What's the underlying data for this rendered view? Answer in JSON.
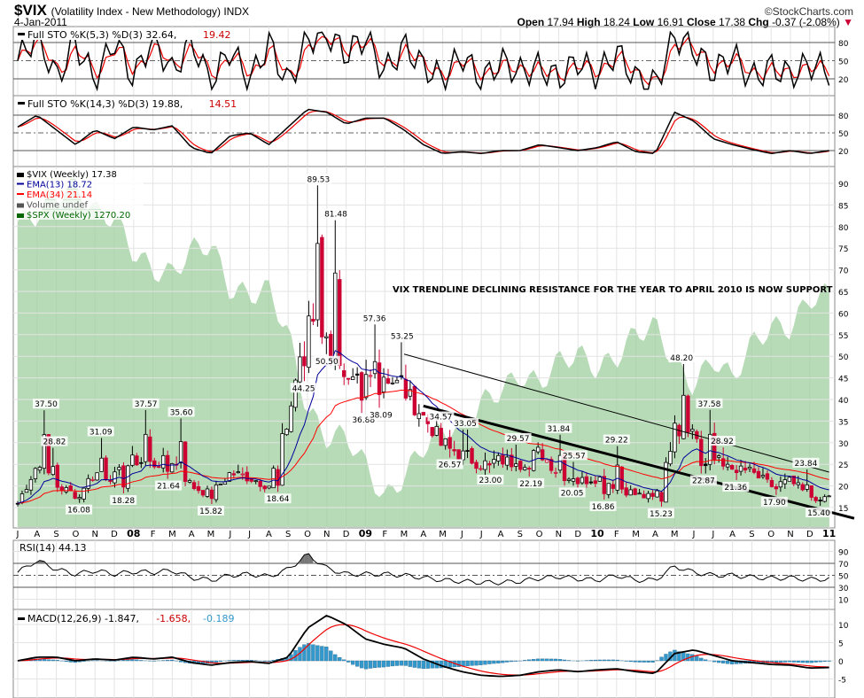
{
  "header": {
    "symbol": "$VIX",
    "description": "(Volatility Index - New Methodology)  INDX",
    "date": "4-Jan-2011",
    "brand": "©StockCharts.com",
    "open_label": "Open",
    "open": "17.94",
    "high_label": "High",
    "high": "18.24",
    "low_label": "Low",
    "low": "16.91",
    "close_label": "Close",
    "close": "17.38",
    "chg_label": "Chg",
    "chg": "-0.37 (-2.08%)",
    "chg_icon": "down-triangle-icon"
  },
  "colors": {
    "candle_up": "#000000",
    "candle_down": "#cc0033",
    "ema13": "#000099",
    "ema34": "#ff0000",
    "spx": "#9fcf9f",
    "rsi": "#000000",
    "macd_hist": "#3399cc",
    "grid": "#e3e3e3"
  },
  "chart_data": [
    {
      "type": "line",
      "panel": "sto1",
      "legend": [
        "Full STO %K(5,3) %D(3) 32.64, ",
        "19.42"
      ],
      "yticks": [
        20,
        50,
        80
      ],
      "ylim": [
        0,
        100
      ],
      "k_values": [
        50,
        95,
        20,
        80,
        15,
        85,
        20,
        90,
        30,
        85,
        10,
        70,
        15,
        80,
        10,
        85,
        95,
        60,
        90,
        30,
        75,
        40,
        20,
        60,
        15,
        50,
        30,
        40,
        20,
        50,
        25,
        65,
        20,
        10,
        90,
        70,
        30,
        60,
        20,
        40,
        25,
        45,
        33
      ]
    },
    {
      "type": "line",
      "panel": "sto2",
      "legend": [
        "Full STO %K(14,3) %D(3) 19.88, ",
        "14.51"
      ],
      "yticks": [
        20,
        50,
        80
      ],
      "ylim": [
        0,
        100
      ],
      "k_values": [
        60,
        80,
        55,
        30,
        55,
        40,
        60,
        55,
        62,
        25,
        15,
        45,
        50,
        30,
        60,
        90,
        85,
        65,
        75,
        75,
        55,
        30,
        15,
        18,
        15,
        20,
        20,
        30,
        25,
        20,
        25,
        35,
        18,
        15,
        85,
        70,
        40,
        30,
        22,
        15,
        20,
        15,
        20
      ]
    },
    {
      "type": "candlestick",
      "panel": "price",
      "legend": [
        "$VIX (Weekly) 17.38",
        "EMA(13) 18.72",
        "EMA(34) 21.14",
        "Volume undef",
        "$SPX (Weekly) 1270.20"
      ],
      "yticks": [
        15,
        20,
        25,
        30,
        35,
        40,
        45,
        50,
        55,
        60,
        65,
        70,
        75,
        80,
        85,
        90
      ],
      "ylim": [
        15,
        90
      ],
      "x_start": "2007-07",
      "x_end": "2011-01",
      "monthly_close": [
        16,
        25,
        20,
        18,
        23,
        22,
        26,
        25,
        26,
        20,
        18,
        23,
        22,
        20,
        35,
        60,
        55,
        42,
        45,
        46,
        42,
        36,
        30,
        27,
        25,
        26,
        25,
        28,
        23,
        21,
        22,
        20,
        18,
        17,
        33,
        34,
        26,
        25,
        23,
        20,
        21,
        17.5,
        17.38
      ],
      "spx_monthly": [
        1455,
        1474,
        1527,
        1549,
        1481,
        1468,
        1378,
        1330,
        1322,
        1385,
        1400,
        1280,
        1267,
        1282,
        1166,
        968,
        896,
        903,
        826,
        735,
        797,
        873,
        919,
        919,
        987,
        1020,
        1057,
        1036,
        1095,
        1115,
        1074,
        1104,
        1169,
        1187,
        1089,
        1031,
        1102,
        1049,
        1141,
        1183,
        1180,
        1258,
        1270
      ],
      "annotations": [
        {
          "date": "2007-08-15",
          "value": 37.5,
          "label": "37.50",
          "kind": "high"
        },
        {
          "date": "2007-08-28",
          "value": 28.82,
          "label": "28.82",
          "kind": "high"
        },
        {
          "date": "2007-10-06",
          "value": 16.08,
          "label": "16.08",
          "kind": "low"
        },
        {
          "date": "2007-11-10",
          "value": 31.09,
          "label": "31.09",
          "kind": "high"
        },
        {
          "date": "2007-12-15",
          "value": 18.28,
          "label": "18.28",
          "kind": "low"
        },
        {
          "date": "2008-01-20",
          "value": 37.57,
          "label": "37.57",
          "kind": "high"
        },
        {
          "date": "2008-02-25",
          "value": 21.64,
          "label": "21.64",
          "kind": "low"
        },
        {
          "date": "2008-03-15",
          "value": 35.6,
          "label": "35.60",
          "kind": "high"
        },
        {
          "date": "2008-05-01",
          "value": 15.82,
          "label": "15.82",
          "kind": "low"
        },
        {
          "date": "2008-08-15",
          "value": 18.64,
          "label": "18.64",
          "kind": "low"
        },
        {
          "date": "2008-09-25",
          "value": 44.25,
          "label": "44.25",
          "kind": "low"
        },
        {
          "date": "2008-10-18",
          "value": 89.53,
          "label": "89.53",
          "kind": "high"
        },
        {
          "date": "2008-11-01",
          "value": 50.5,
          "label": "50.50",
          "kind": "low"
        },
        {
          "date": "2008-11-15",
          "value": 81.48,
          "label": "81.48",
          "kind": "high"
        },
        {
          "date": "2008-12-28",
          "value": 36.88,
          "label": "36.88",
          "kind": "low"
        },
        {
          "date": "2009-01-15",
          "value": 57.36,
          "label": "57.36",
          "kind": "high"
        },
        {
          "date": "2009-01-25",
          "value": 38.09,
          "label": "38.09",
          "kind": "low"
        },
        {
          "date": "2009-02-28",
          "value": 53.25,
          "label": "53.25",
          "kind": "high"
        },
        {
          "date": "2009-04-28",
          "value": 34.57,
          "label": "34.57",
          "kind": "high"
        },
        {
          "date": "2009-05-12",
          "value": 26.57,
          "label": "26.57",
          "kind": "low"
        },
        {
          "date": "2009-06-06",
          "value": 33.05,
          "label": "33.05",
          "kind": "high"
        },
        {
          "date": "2009-07-15",
          "value": 23.0,
          "label": "23.00",
          "kind": "low"
        },
        {
          "date": "2009-08-28",
          "value": 29.57,
          "label": "29.57",
          "kind": "high"
        },
        {
          "date": "2009-09-18",
          "value": 22.19,
          "label": "22.19",
          "kind": "low"
        },
        {
          "date": "2009-11-01",
          "value": 31.84,
          "label": "31.84",
          "kind": "high"
        },
        {
          "date": "2009-11-25",
          "value": 25.57,
          "label": "25.57",
          "kind": "high"
        },
        {
          "date": "2009-11-22",
          "value": 20.05,
          "label": "20.05",
          "kind": "low"
        },
        {
          "date": "2010-01-10",
          "value": 16.86,
          "label": "16.86",
          "kind": "low"
        },
        {
          "date": "2010-02-01",
          "value": 29.22,
          "label": "29.22",
          "kind": "high"
        },
        {
          "date": "2010-04-10",
          "value": 15.23,
          "label": "15.23",
          "kind": "low"
        },
        {
          "date": "2010-05-12",
          "value": 48.2,
          "label": "48.20",
          "kind": "high"
        },
        {
          "date": "2010-06-16",
          "value": 22.87,
          "label": "22.87",
          "kind": "low"
        },
        {
          "date": "2010-06-25",
          "value": 37.58,
          "label": "37.58",
          "kind": "high"
        },
        {
          "date": "2010-07-15",
          "value": 28.92,
          "label": "28.92",
          "kind": "high"
        },
        {
          "date": "2010-08-06",
          "value": 21.36,
          "label": "21.36",
          "kind": "low"
        },
        {
          "date": "2010-10-06",
          "value": 17.9,
          "label": "17.90",
          "kind": "low"
        },
        {
          "date": "2010-11-25",
          "value": 23.84,
          "label": "23.84",
          "kind": "high"
        },
        {
          "date": "2010-12-15",
          "value": 15.4,
          "label": "15.40",
          "kind": "low"
        }
      ],
      "trendlines": [
        {
          "from": {
            "date": "2009-03-01",
            "value": 50.5
          },
          "to": {
            "date": "2011-01-01",
            "value": 23.2
          },
          "style": "thin"
        },
        {
          "from": {
            "date": "2009-04-01",
            "value": 38.5
          },
          "to": {
            "date": "2011-02-10",
            "value": 12.5
          },
          "style": "thick"
        }
      ],
      "note": "VIX TRENDLINE DECLINING RESISTANCE FOR THE YEAR TO APRIL 2010 IS NOW SUPPORT"
    },
    {
      "type": "line",
      "panel": "rsi",
      "legend": [
        "RSI(14) 44.13"
      ],
      "yticks": [
        10,
        30,
        50,
        70,
        90
      ],
      "values": [
        55,
        75,
        60,
        52,
        58,
        52,
        56,
        55,
        58,
        46,
        42,
        50,
        52,
        48,
        60,
        85,
        62,
        52,
        52,
        52,
        50,
        46,
        42,
        40,
        38,
        38,
        40,
        45,
        48,
        44,
        42,
        50,
        42,
        42,
        65,
        55,
        50,
        50,
        47,
        45,
        46,
        43,
        44
      ]
    },
    {
      "type": "line",
      "panel": "macd",
      "legend": [
        "MACD(12,26,9) -1.847, ",
        "-1.658, ",
        "-0.189"
      ],
      "yticks": [
        -5,
        0,
        5,
        10
      ],
      "macd_values": [
        0,
        1,
        1,
        0,
        0.5,
        0.2,
        1,
        0.5,
        1,
        -0.5,
        -1.2,
        -0.5,
        -0.2,
        -0.7,
        1,
        9,
        12.5,
        10,
        6,
        4.5,
        3.5,
        0.5,
        -1.5,
        -3,
        -4,
        -4.3,
        -4,
        -3,
        -2.5,
        -3,
        -2.5,
        -2.2,
        -3,
        -3.5,
        2,
        3,
        1.5,
        0,
        -0.5,
        -1,
        -1.2,
        -2,
        -1.85
      ]
    }
  ],
  "x_axis": {
    "labels": [
      "J",
      "A",
      "S",
      "O",
      "N",
      "D",
      "08",
      "F",
      "M",
      "A",
      "M",
      "J",
      "J",
      "A",
      "S",
      "O",
      "N",
      "D",
      "09",
      "F",
      "M",
      "A",
      "M",
      "J",
      "J",
      "A",
      "S",
      "O",
      "N",
      "D",
      "10",
      "F",
      "M",
      "A",
      "M",
      "J",
      "J",
      "A",
      "S",
      "O",
      "N",
      "D",
      "11"
    ]
  }
}
